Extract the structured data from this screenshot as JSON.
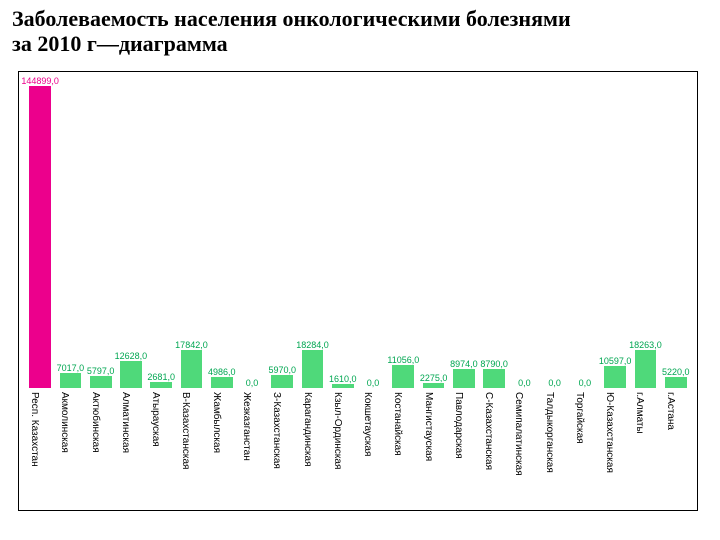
{
  "title": "Заболеваемость населения онкологическими болезнями\n за  2010 г—диаграмма",
  "chart": {
    "type": "bar",
    "ymax": 144899,
    "value_label_suffix": ",0",
    "title_fontsize": 22,
    "title_color": "#000000",
    "axis_fontsize": 10,
    "value_fontsize": 9,
    "background_color": "#ffffff",
    "frame_border_color": "#000000",
    "categories": [
      "Респ. Казахстан",
      "Акмолинская",
      "Актюбинская",
      "Алматинская",
      "Атырауская",
      "В-Казахстанская",
      "Жамбылская",
      "Жезказганстан",
      "З-Казахстанская",
      "Карагандинская",
      "Кзыл-Ординская",
      "Кокшетауская",
      "Костанайская",
      "Мангистауская",
      "Павлодарская",
      "С-Казахстанская",
      "Семипалатинская",
      "Талдыкорганская",
      "Торгайская",
      "Ю-Казахстанская",
      "г.Алматы",
      "г.Астана"
    ],
    "values": [
      144899,
      7017,
      5797,
      12628,
      2681,
      17842,
      4986,
      0,
      5970,
      18284,
      1610,
      0,
      11056,
      2275,
      8974,
      8790,
      0,
      0,
      0,
      10597,
      18263,
      5220
    ],
    "colors": [
      "#ec008c",
      "#4fd97a",
      "#4fd97a",
      "#4fd97a",
      "#4fd97a",
      "#4fd97a",
      "#4fd97a",
      "#4fd97a",
      "#4fd97a",
      "#4fd97a",
      "#4fd97a",
      "#4fd97a",
      "#4fd97a",
      "#4fd97a",
      "#4fd97a",
      "#4fd97a",
      "#4fd97a",
      "#4fd97a",
      "#4fd97a",
      "#4fd97a",
      "#4fd97a",
      "#4fd97a"
    ],
    "label_colors": [
      "#ec008c",
      "#00a651",
      "#00a651",
      "#00a651",
      "#00a651",
      "#00a651",
      "#00a651",
      "#00a651",
      "#00a651",
      "#00a651",
      "#00a651",
      "#00a651",
      "#00a651",
      "#00a651",
      "#00a651",
      "#00a651",
      "#00a651",
      "#00a651",
      "#00a651",
      "#00a651",
      "#00a651",
      "#00a651"
    ]
  }
}
